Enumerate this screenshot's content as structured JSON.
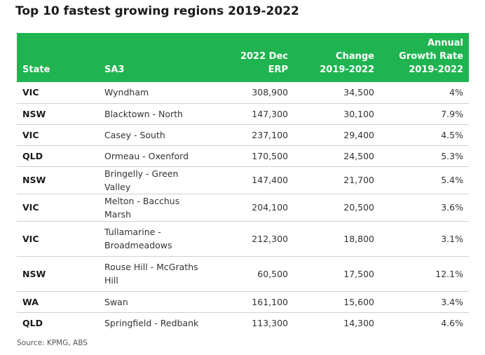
{
  "title": "Top 10 fastest growing regions 2019-2022",
  "header": {
    "state": "State",
    "sa3": "SA3",
    "erp_line1": "2022 Dec",
    "erp_line2": "ERP",
    "change_line1": "Change",
    "change_line2": "2019-2022",
    "growth_line1": "Annual",
    "growth_line2": "Growth Rate",
    "growth_line3": "2019-2022"
  },
  "rows": [
    {
      "state": "VIC",
      "sa3": "Wyndham",
      "erp": "308,900",
      "change": "34,500",
      "growth": "4%"
    },
    {
      "state": "NSW",
      "sa3": "Blacktown - North",
      "erp": "147,300",
      "change": "30,100",
      "growth": "7.9%"
    },
    {
      "state": "VIC",
      "sa3": "Casey - South",
      "erp": "237,100",
      "change": "29,400",
      "growth": "4.5%"
    },
    {
      "state": "QLD",
      "sa3": "Ormeau - Oxenford",
      "erp": "170,500",
      "change": "24,500",
      "growth": "5.3%"
    },
    {
      "state": "NSW",
      "sa3": "Bringelly - Green Valley",
      "erp": "147,400",
      "change": "21,700",
      "growth": "5.4%"
    },
    {
      "state": "VIC",
      "sa3": "Melton - Bacchus Marsh",
      "erp": "204,100",
      "change": "20,500",
      "growth": "3.6%"
    },
    {
      "state": "VIC",
      "sa3": "Tullamarine - Broadmeadows",
      "erp": "212,300",
      "change": "18,800",
      "growth": "3.1%"
    },
    {
      "state": "NSW",
      "sa3": "Rouse Hill - McGraths Hill",
      "erp": "60,500",
      "change": "17,500",
      "growth": "12.1%"
    },
    {
      "state": "WA",
      "sa3": "Swan",
      "erp": "161,100",
      "change": "15,600",
      "growth": "3.4%"
    },
    {
      "state": "QLD",
      "sa3": "Springfield - Redbank",
      "erp": "113,300",
      "change": "14,300",
      "growth": "4.6%"
    }
  ],
  "source": "Source: KPMG, ABS",
  "colors": {
    "header_bg": "#1fb450",
    "header_text": "#ffffff",
    "row_divider": "#d0d0d0"
  }
}
